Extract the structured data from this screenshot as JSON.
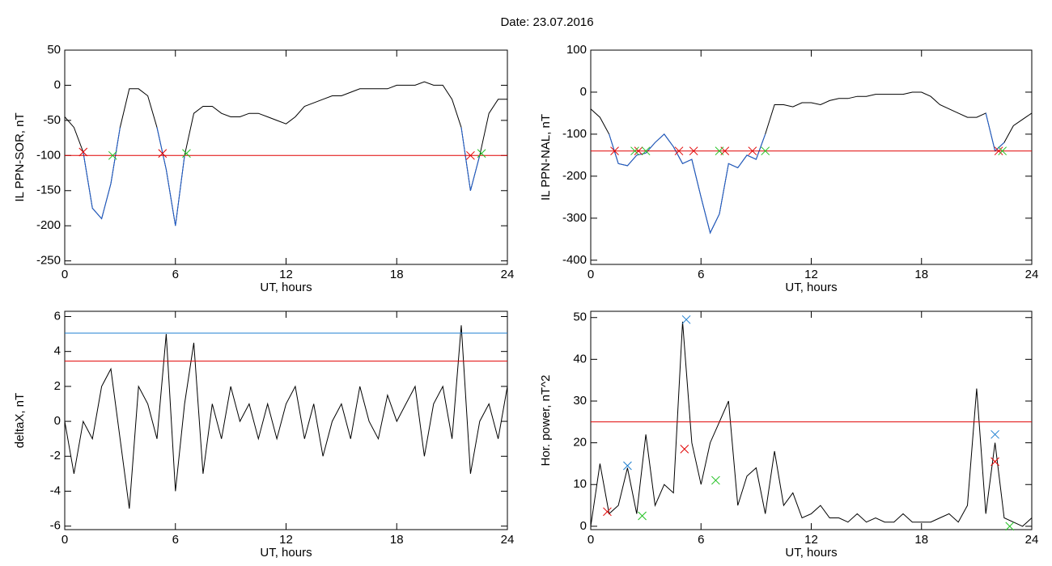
{
  "title": "Date:  23.07.2016",
  "chart_data": [
    {
      "type": "line",
      "ylabel": "IL PPN-SOR, nT",
      "xlabel": "UT, hours",
      "xlim": [
        0,
        24
      ],
      "xticks": [
        0,
        6,
        12,
        18,
        24
      ],
      "ylim": [
        -255,
        50
      ],
      "yticks": [
        -250,
        -200,
        -150,
        -100,
        -50,
        0,
        50
      ],
      "x": [
        0,
        0.5,
        1,
        1.5,
        2,
        2.5,
        3,
        3.5,
        4,
        4.5,
        5,
        5.5,
        6,
        6.5,
        7,
        7.5,
        8,
        8.5,
        9,
        9.5,
        10,
        10.5,
        11,
        11.5,
        12,
        12.5,
        13,
        13.5,
        14,
        14.5,
        15,
        15.5,
        16,
        16.5,
        17,
        17.5,
        18,
        18.5,
        19,
        19.5,
        20,
        20.5,
        21,
        21.5,
        22,
        22.5,
        23,
        23.5,
        24
      ],
      "series": [
        {
          "color": "#000000",
          "style": "line",
          "values": [
            -45,
            -60,
            -95,
            -175,
            -190,
            -140,
            -60,
            -5,
            -5,
            -15,
            -60,
            -120,
            -200,
            -100,
            -40,
            -30,
            -30,
            -40,
            -45,
            -45,
            -40,
            -40,
            -45,
            -50,
            -55,
            -45,
            -30,
            -25,
            -20,
            -15,
            -15,
            -10,
            -5,
            -5,
            -5,
            -5,
            0,
            0,
            0,
            5,
            0,
            0,
            -20,
            -60,
            -150,
            -100,
            -40,
            -20,
            -20
          ]
        },
        {
          "color": "#1f5fd0",
          "style": "line",
          "values": [
            null,
            null,
            -95,
            -175,
            -190,
            -140,
            -60,
            null,
            null,
            null,
            -60,
            -120,
            -200,
            -100,
            null,
            null,
            null,
            null,
            null,
            null,
            null,
            null,
            null,
            null,
            null,
            null,
            null,
            null,
            null,
            null,
            null,
            null,
            null,
            null,
            null,
            null,
            null,
            null,
            null,
            null,
            null,
            null,
            null,
            -60,
            -150,
            -100,
            null,
            null,
            null
          ]
        },
        {
          "color": "#e00000",
          "style": "line",
          "x": [
            0,
            24
          ],
          "values": [
            -100,
            -100
          ]
        },
        {
          "color": "#e00000",
          "style": "marker",
          "x": [
            1,
            5.3,
            22
          ],
          "values": [
            -95,
            -97,
            -100
          ]
        },
        {
          "color": "#20c020",
          "style": "marker",
          "x": [
            2.6,
            6.6,
            22.6
          ],
          "values": [
            -100,
            -97,
            -97
          ]
        }
      ]
    },
    {
      "type": "line",
      "ylabel": "IL PPN-NAL, nT",
      "xlabel": "UT, hours",
      "xlim": [
        0,
        24
      ],
      "xticks": [
        0,
        6,
        12,
        18,
        24
      ],
      "ylim": [
        -410,
        100
      ],
      "yticks": [
        -400,
        -300,
        -200,
        -100,
        0,
        100
      ],
      "x": [
        0,
        0.5,
        1,
        1.5,
        2,
        2.5,
        3,
        3.5,
        4,
        4.5,
        5,
        5.5,
        6,
        6.5,
        7,
        7.5,
        8,
        8.5,
        9,
        9.5,
        10,
        10.5,
        11,
        11.5,
        12,
        12.5,
        13,
        13.5,
        14,
        14.5,
        15,
        15.5,
        16,
        16.5,
        17,
        17.5,
        18,
        18.5,
        19,
        19.5,
        20,
        20.5,
        21,
        21.5,
        22,
        22.5,
        23,
        23.5,
        24
      ],
      "series": [
        {
          "color": "#000000",
          "style": "line",
          "values": [
            -40,
            -60,
            -100,
            -170,
            -175,
            -150,
            -145,
            -120,
            -100,
            -130,
            -170,
            -160,
            -250,
            -335,
            -290,
            -170,
            -180,
            -150,
            -160,
            -100,
            -30,
            -30,
            -35,
            -25,
            -25,
            -30,
            -20,
            -15,
            -15,
            -10,
            -10,
            -5,
            -5,
            -5,
            -5,
            0,
            0,
            -10,
            -30,
            -40,
            -50,
            -60,
            -60,
            -50,
            -140,
            -120,
            -80,
            -65,
            -50
          ]
        },
        {
          "color": "#1f5fd0",
          "style": "line",
          "values": [
            null,
            null,
            -100,
            -170,
            -175,
            -150,
            -145,
            -120,
            -100,
            -130,
            -170,
            -160,
            -250,
            -335,
            -290,
            -170,
            -180,
            -150,
            -160,
            -100,
            null,
            null,
            null,
            null,
            null,
            null,
            null,
            null,
            null,
            null,
            null,
            null,
            null,
            null,
            null,
            null,
            null,
            null,
            null,
            null,
            null,
            null,
            null,
            -50,
            -140,
            -120,
            null,
            null,
            null
          ]
        },
        {
          "color": "#e00000",
          "style": "line",
          "x": [
            0,
            24
          ],
          "values": [
            -140,
            -140
          ]
        },
        {
          "color": "#e00000",
          "style": "marker",
          "x": [
            1.3,
            2.6,
            4.8,
            5.6,
            7.3,
            8.8,
            22.2
          ],
          "values": [
            -140,
            -140,
            -140,
            -140,
            -140,
            -140,
            -140
          ]
        },
        {
          "color": "#20c020",
          "style": "marker",
          "x": [
            2.4,
            3.0,
            7.0,
            9.5,
            22.4
          ],
          "values": [
            -140,
            -140,
            -140,
            -140,
            -140
          ]
        }
      ]
    },
    {
      "type": "line",
      "ylabel": "deltaX, nT",
      "xlabel": "UT, hours",
      "xlim": [
        0,
        24
      ],
      "xticks": [
        0,
        6,
        12,
        18,
        24
      ],
      "ylim": [
        -6.2,
        6.3
      ],
      "yticks": [
        -6,
        -4,
        -2,
        0,
        2,
        4,
        6
      ],
      "x": [
        0,
        0.5,
        1,
        1.5,
        2,
        2.5,
        3,
        3.5,
        4,
        4.5,
        5,
        5.5,
        6,
        6.5,
        7,
        7.5,
        8,
        8.5,
        9,
        9.5,
        10,
        10.5,
        11,
        11.5,
        12,
        12.5,
        13,
        13.5,
        14,
        14.5,
        15,
        15.5,
        16,
        16.5,
        17,
        17.5,
        18,
        18.5,
        19,
        19.5,
        20,
        20.5,
        21,
        21.5,
        22,
        22.5,
        23,
        23.5,
        24
      ],
      "series": [
        {
          "color": "#000000",
          "style": "line",
          "values": [
            0,
            -3,
            0,
            -1,
            2,
            3,
            -1,
            -5,
            2,
            1,
            -1,
            5,
            -4,
            1,
            4.5,
            -3,
            1,
            -1,
            2,
            0,
            1,
            -1,
            1,
            -1,
            1,
            2,
            -1,
            1,
            -2,
            0,
            1,
            -1,
            2,
            0,
            -1,
            1.5,
            0,
            1,
            2,
            -2,
            1,
            2,
            -1,
            5.5,
            -3,
            0,
            1,
            -1,
            2
          ]
        },
        {
          "color": "#e00000",
          "style": "line",
          "x": [
            0,
            24
          ],
          "values": [
            3.45,
            3.45
          ]
        },
        {
          "color": "#1f7fd0",
          "style": "line",
          "x": [
            0,
            24
          ],
          "values": [
            5.05,
            5.05
          ]
        }
      ]
    },
    {
      "type": "line",
      "ylabel": "Hor. power, nT^2",
      "xlabel": "UT, hours",
      "xlim": [
        0,
        24
      ],
      "xticks": [
        0,
        6,
        12,
        18,
        24
      ],
      "ylim": [
        -0.8,
        51.5
      ],
      "yticks": [
        0,
        10,
        20,
        30,
        40,
        50
      ],
      "x": [
        0,
        0.5,
        1,
        1.5,
        2,
        2.5,
        3,
        3.5,
        4,
        4.5,
        5,
        5.5,
        6,
        6.5,
        7,
        7.5,
        8,
        8.5,
        9,
        9.5,
        10,
        10.5,
        11,
        11.5,
        12,
        12.5,
        13,
        13.5,
        14,
        14.5,
        15,
        15.5,
        16,
        16.5,
        17,
        17.5,
        18,
        18.5,
        19,
        19.5,
        20,
        20.5,
        21,
        21.5,
        22,
        22.5,
        23,
        23.5,
        24
      ],
      "series": [
        {
          "color": "#000000",
          "style": "line",
          "values": [
            0,
            15,
            3,
            5,
            14,
            3,
            22,
            5,
            10,
            8,
            49,
            20,
            10,
            20,
            25,
            30,
            5,
            12,
            14,
            3,
            18,
            5,
            8,
            2,
            3,
            5,
            2,
            2,
            1,
            3,
            1,
            2,
            1,
            1,
            3,
            1,
            1,
            1,
            2,
            3,
            1,
            5,
            33,
            3,
            20,
            2,
            1,
            0,
            2
          ]
        },
        {
          "color": "#e00000",
          "style": "line",
          "x": [
            0,
            24
          ],
          "values": [
            25,
            25
          ]
        },
        {
          "color": "#1f7fd0",
          "style": "marker",
          "x": [
            2,
            5.2,
            22
          ],
          "values": [
            14.5,
            49.5,
            22
          ]
        },
        {
          "color": "#e00000",
          "style": "marker",
          "x": [
            0.9,
            5.1,
            22
          ],
          "values": [
            3.5,
            18.5,
            15.5
          ]
        },
        {
          "color": "#20c020",
          "style": "marker",
          "x": [
            2.8,
            6.8,
            22.8
          ],
          "values": [
            2.5,
            11,
            0
          ]
        }
      ]
    }
  ]
}
